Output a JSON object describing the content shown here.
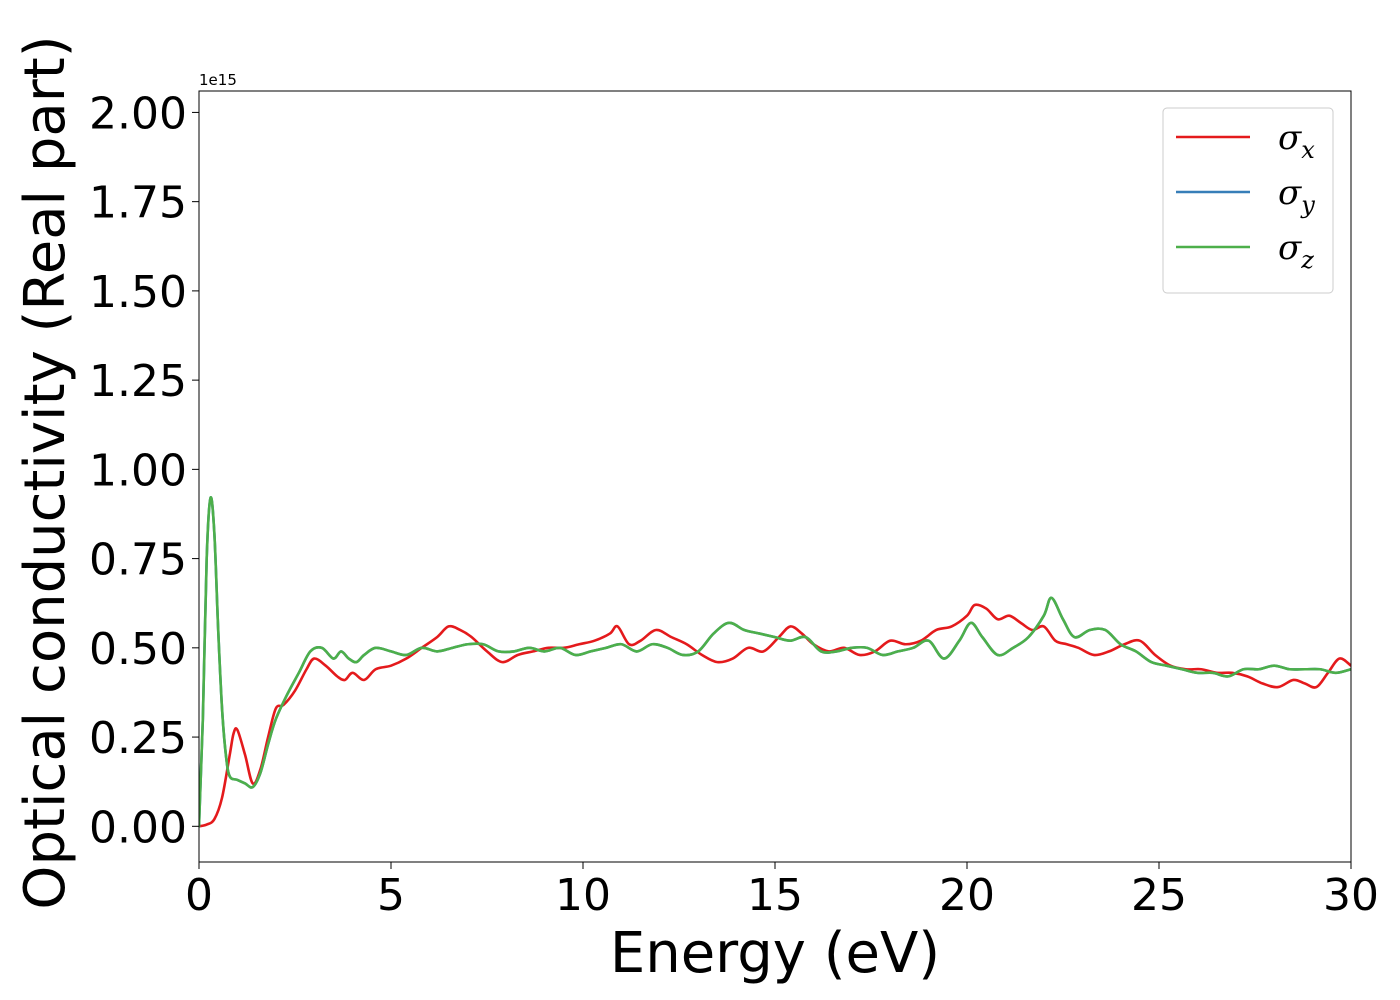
{
  "chart_data": {
    "type": "line",
    "title": "",
    "xlabel": "Energy (eV)",
    "ylabel": "Optical conductivity (Real part)",
    "y_offset_text": "1e15",
    "xlim": [
      0,
      30
    ],
    "ylim": [
      -0.1,
      2.06
    ],
    "xticks": [
      0,
      5,
      10,
      15,
      20,
      25,
      30
    ],
    "yticks": [
      0.0,
      0.25,
      0.5,
      0.75,
      1.0,
      1.25,
      1.5,
      1.75,
      2.0
    ],
    "xtick_labels": [
      "0",
      "5",
      "10",
      "15",
      "20",
      "25",
      "30"
    ],
    "ytick_labels": [
      "0.00",
      "0.25",
      "0.50",
      "0.75",
      "1.00",
      "1.25",
      "1.50",
      "1.75",
      "2.00"
    ],
    "grid": false,
    "legend_position": "top-right",
    "series": [
      {
        "name": "σx",
        "name_base": "σ",
        "name_sub": "x",
        "color": "#e41a1c",
        "x": [
          0,
          0.2,
          0.4,
          0.6,
          0.8,
          0.9,
          1.0,
          1.2,
          1.4,
          1.6,
          1.8,
          2.0,
          2.2,
          2.5,
          2.8,
          3.0,
          3.3,
          3.6,
          3.8,
          4.0,
          4.3,
          4.6,
          5.0,
          5.4,
          5.8,
          6.2,
          6.5,
          6.8,
          7.1,
          7.5,
          7.9,
          8.3,
          8.7,
          9.1,
          9.5,
          9.9,
          10.3,
          10.7,
          10.9,
          11.2,
          11.5,
          11.9,
          12.3,
          12.7,
          13.1,
          13.5,
          13.9,
          14.3,
          14.7,
          15.1,
          15.4,
          15.7,
          16.0,
          16.4,
          16.8,
          17.2,
          17.6,
          18.0,
          18.4,
          18.8,
          19.2,
          19.6,
          20.0,
          20.2,
          20.5,
          20.8,
          21.1,
          21.4,
          21.7,
          22.0,
          22.3,
          22.6,
          22.9,
          23.3,
          23.7,
          24.1,
          24.5,
          24.9,
          25.3,
          25.7,
          26.1,
          26.5,
          26.9,
          27.3,
          27.7,
          28.1,
          28.5,
          28.8,
          29.1,
          29.4,
          29.7,
          30.0
        ],
        "values": [
          0.0,
          0.005,
          0.02,
          0.08,
          0.2,
          0.26,
          0.27,
          0.2,
          0.12,
          0.16,
          0.25,
          0.33,
          0.34,
          0.38,
          0.44,
          0.47,
          0.45,
          0.42,
          0.41,
          0.43,
          0.41,
          0.44,
          0.45,
          0.47,
          0.5,
          0.53,
          0.56,
          0.55,
          0.53,
          0.49,
          0.46,
          0.48,
          0.49,
          0.5,
          0.5,
          0.51,
          0.52,
          0.54,
          0.56,
          0.51,
          0.52,
          0.55,
          0.53,
          0.51,
          0.48,
          0.46,
          0.47,
          0.5,
          0.49,
          0.53,
          0.56,
          0.54,
          0.51,
          0.49,
          0.5,
          0.48,
          0.49,
          0.52,
          0.51,
          0.52,
          0.55,
          0.56,
          0.59,
          0.62,
          0.61,
          0.58,
          0.59,
          0.57,
          0.55,
          0.56,
          0.52,
          0.51,
          0.5,
          0.48,
          0.49,
          0.51,
          0.52,
          0.48,
          0.45,
          0.44,
          0.44,
          0.43,
          0.43,
          0.42,
          0.4,
          0.39,
          0.41,
          0.4,
          0.39,
          0.43,
          0.47,
          0.45
        ]
      },
      {
        "name": "σy",
        "name_base": "σ",
        "name_sub": "y",
        "color": "#377eb8",
        "x": [
          0,
          0.1,
          0.2,
          0.3,
          0.4,
          0.5,
          0.6,
          0.7,
          0.8,
          1.0,
          1.2,
          1.4,
          1.6,
          1.8,
          2.0,
          2.3,
          2.6,
          2.9,
          3.2,
          3.5,
          3.7,
          3.9,
          4.1,
          4.3,
          4.6,
          5.0,
          5.4,
          5.8,
          6.2,
          6.6,
          7.0,
          7.4,
          7.8,
          8.2,
          8.6,
          9.0,
          9.4,
          9.8,
          10.2,
          10.6,
          11.0,
          11.4,
          11.8,
          12.2,
          12.6,
          13.0,
          13.4,
          13.8,
          14.2,
          14.6,
          15.0,
          15.4,
          15.8,
          16.2,
          16.6,
          17.0,
          17.4,
          17.8,
          18.2,
          18.6,
          19.0,
          19.4,
          19.8,
          20.1,
          20.4,
          20.8,
          21.2,
          21.6,
          22.0,
          22.2,
          22.5,
          22.8,
          23.2,
          23.6,
          24.0,
          24.4,
          24.8,
          25.2,
          25.6,
          26.0,
          26.4,
          26.8,
          27.2,
          27.6,
          28.0,
          28.4,
          28.8,
          29.2,
          29.6,
          30.0
        ],
        "values": [
          0.0,
          0.3,
          0.75,
          0.92,
          0.82,
          0.55,
          0.33,
          0.2,
          0.14,
          0.13,
          0.12,
          0.11,
          0.15,
          0.23,
          0.3,
          0.37,
          0.43,
          0.49,
          0.5,
          0.47,
          0.49,
          0.47,
          0.46,
          0.48,
          0.5,
          0.49,
          0.48,
          0.5,
          0.49,
          0.5,
          0.51,
          0.51,
          0.49,
          0.49,
          0.5,
          0.49,
          0.5,
          0.48,
          0.49,
          0.5,
          0.51,
          0.49,
          0.51,
          0.5,
          0.48,
          0.49,
          0.54,
          0.57,
          0.55,
          0.54,
          0.53,
          0.52,
          0.53,
          0.49,
          0.49,
          0.5,
          0.5,
          0.48,
          0.49,
          0.5,
          0.52,
          0.47,
          0.52,
          0.57,
          0.53,
          0.48,
          0.5,
          0.53,
          0.59,
          0.64,
          0.58,
          0.53,
          0.55,
          0.55,
          0.51,
          0.49,
          0.46,
          0.45,
          0.44,
          0.43,
          0.43,
          0.42,
          0.44,
          0.44,
          0.45,
          0.44,
          0.44,
          0.44,
          0.43,
          0.44
        ]
      },
      {
        "name": "σz",
        "name_base": "σ",
        "name_sub": "z",
        "color": "#4daf4a",
        "x": [
          0,
          0.1,
          0.2,
          0.3,
          0.4,
          0.5,
          0.6,
          0.7,
          0.8,
          1.0,
          1.2,
          1.4,
          1.6,
          1.8,
          2.0,
          2.3,
          2.6,
          2.9,
          3.2,
          3.5,
          3.7,
          3.9,
          4.1,
          4.3,
          4.6,
          5.0,
          5.4,
          5.8,
          6.2,
          6.6,
          7.0,
          7.4,
          7.8,
          8.2,
          8.6,
          9.0,
          9.4,
          9.8,
          10.2,
          10.6,
          11.0,
          11.4,
          11.8,
          12.2,
          12.6,
          13.0,
          13.4,
          13.8,
          14.2,
          14.6,
          15.0,
          15.4,
          15.8,
          16.2,
          16.6,
          17.0,
          17.4,
          17.8,
          18.2,
          18.6,
          19.0,
          19.4,
          19.8,
          20.1,
          20.4,
          20.8,
          21.2,
          21.6,
          22.0,
          22.2,
          22.5,
          22.8,
          23.2,
          23.6,
          24.0,
          24.4,
          24.8,
          25.2,
          25.6,
          26.0,
          26.4,
          26.8,
          27.2,
          27.6,
          28.0,
          28.4,
          28.8,
          29.2,
          29.6,
          30.0
        ],
        "values": [
          0.0,
          0.3,
          0.75,
          0.92,
          0.82,
          0.55,
          0.33,
          0.2,
          0.14,
          0.13,
          0.12,
          0.11,
          0.15,
          0.23,
          0.3,
          0.37,
          0.43,
          0.49,
          0.5,
          0.47,
          0.49,
          0.47,
          0.46,
          0.48,
          0.5,
          0.49,
          0.48,
          0.5,
          0.49,
          0.5,
          0.51,
          0.51,
          0.49,
          0.49,
          0.5,
          0.49,
          0.5,
          0.48,
          0.49,
          0.5,
          0.51,
          0.49,
          0.51,
          0.5,
          0.48,
          0.49,
          0.54,
          0.57,
          0.55,
          0.54,
          0.53,
          0.52,
          0.53,
          0.49,
          0.49,
          0.5,
          0.5,
          0.48,
          0.49,
          0.5,
          0.52,
          0.47,
          0.52,
          0.57,
          0.53,
          0.48,
          0.5,
          0.53,
          0.59,
          0.64,
          0.58,
          0.53,
          0.55,
          0.55,
          0.51,
          0.49,
          0.46,
          0.45,
          0.44,
          0.43,
          0.43,
          0.42,
          0.44,
          0.44,
          0.45,
          0.44,
          0.44,
          0.44,
          0.43,
          0.44
        ]
      }
    ]
  }
}
